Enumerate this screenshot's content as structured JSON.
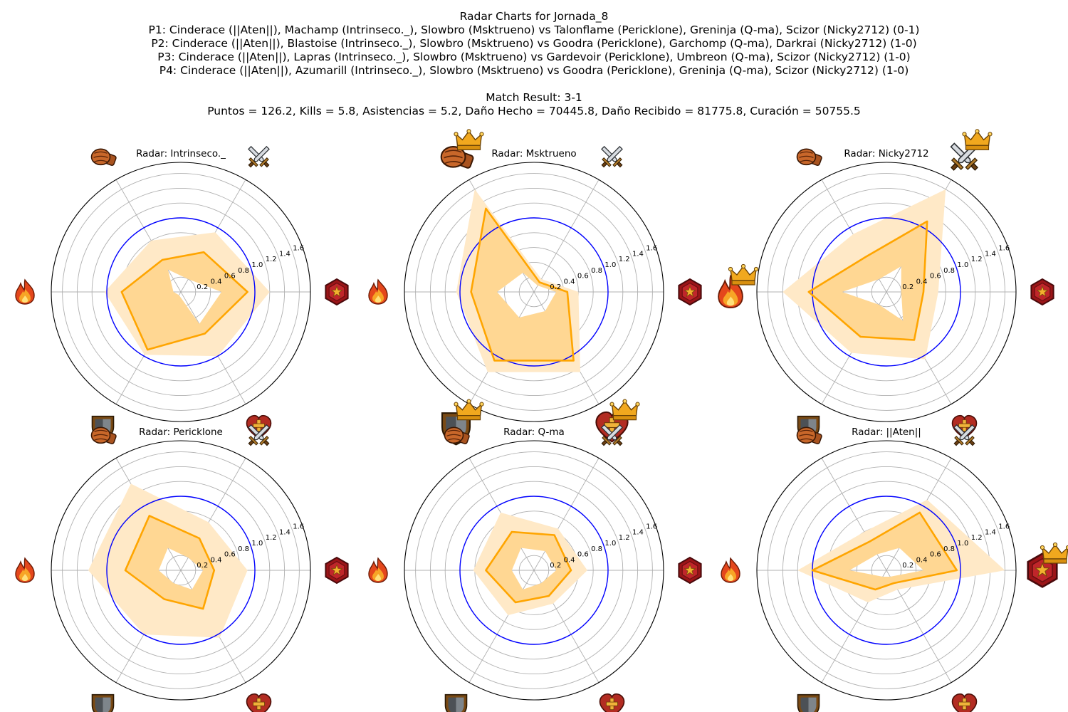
{
  "header": {
    "title": "Radar Charts for Jornada_8",
    "matches": [
      "P1: Cinderace (||Aten||), Machamp (Intrinseco._), Slowbro (Msktrueno) vs Talonflame (Pericklone), Greninja (Q-ma), Scizor (Nicky2712) (0-1)",
      "P2: Cinderace (||Aten||), Blastoise (Intrinseco._), Slowbro (Msktrueno) vs Goodra (Pericklone), Garchomp (Q-ma), Darkrai (Nicky2712) (1-0)",
      "P3: Cinderace (||Aten||), Lapras (Intrinseco._), Slowbro (Msktrueno) vs Gardevoir (Pericklone), Umbreon (Q-ma), Scizor (Nicky2712) (1-0)",
      "P4: Cinderace (||Aten||), Azumarill (Intrinseco._), Slowbro (Msktrueno) vs Goodra (Pericklone), Greninja (Q-ma), Scizor (Nicky2712) (1-0)"
    ],
    "match_result": "Match Result: 3-1",
    "summary": "Puntos = 126.2, Kills = 5.8, Asistencias = 5.2, Daño Hecho = 70445.8, Daño Recibido = 81775.8, Curación = 50755.5"
  },
  "colors": {
    "line": "#ffa500",
    "fill": "#ffd48a",
    "band": "#ffe9c7",
    "reference": "#0000ff",
    "grid": "#b0b0b0",
    "frame": "#000000"
  },
  "icons": [
    "star-icon",
    "sword-icon",
    "punch-icon",
    "fire-icon",
    "shield-icon",
    "heart-icon"
  ],
  "chart_data": [
    {
      "type": "radar",
      "title": "Radar: Intrinseco._",
      "rlim": [
        0,
        1.75
      ],
      "rticks": [
        "0.2",
        "0.4",
        "0.6",
        "0.8",
        "1.0",
        "1.2",
        "1.4",
        "1.6"
      ],
      "reference_circle": 1.0,
      "values": [
        0.9,
        0.62,
        0.5,
        0.8,
        0.9,
        0.65
      ],
      "band_min": [
        0.55,
        0.2,
        0.35,
        0.1,
        0.05,
        0.5
      ],
      "band_max": [
        1.2,
        0.93,
        0.8,
        1.03,
        0.98,
        1.0
      ],
      "crowns": []
    },
    {
      "type": "radar",
      "title": "Radar: Msktrueno",
      "rlim": [
        0,
        1.75
      ],
      "rticks": [
        "0.2",
        "0.4",
        "0.6",
        "0.8",
        "1.0",
        "1.2",
        "1.4",
        "1.6"
      ],
      "reference_circle": 1.0,
      "values": [
        0.45,
        0.15,
        1.3,
        0.85,
        1.07,
        1.07
      ],
      "band_min": [
        0.3,
        0.1,
        0.3,
        0.5,
        0.4,
        0.3
      ],
      "band_max": [
        0.6,
        0.2,
        1.6,
        1.05,
        1.25,
        1.25
      ],
      "crowns": [
        2,
        4,
        5
      ]
    },
    {
      "type": "radar",
      "title": "Radar: Nicky2712",
      "rlim": [
        0,
        1.75
      ],
      "rticks": [
        "0.2",
        "0.4",
        "0.6",
        "0.8",
        "1.0",
        "1.2",
        "1.4",
        "1.6"
      ],
      "reference_circle": 1.0,
      "values": [
        0.5,
        1.1,
        0.55,
        1.05,
        0.7,
        0.75
      ],
      "band_min": [
        0.2,
        0.4,
        0.2,
        0.6,
        0.2,
        0.45
      ],
      "band_max": [
        0.7,
        1.6,
        0.9,
        1.4,
        0.95,
        1.05
      ],
      "crowns": [
        1,
        3
      ]
    },
    {
      "type": "radar",
      "title": "Radar: Pericklone",
      "rlim": [
        0,
        1.75
      ],
      "rticks": [
        "0.2",
        "0.4",
        "0.6",
        "0.8",
        "1.0",
        "1.2",
        "1.4",
        "1.6"
      ],
      "reference_circle": 1.0,
      "values": [
        0.45,
        0.5,
        0.85,
        0.75,
        0.45,
        0.6
      ],
      "band_min": [
        0.3,
        0.2,
        0.35,
        0.3,
        0.2,
        0.3
      ],
      "band_max": [
        0.9,
        0.75,
        1.35,
        1.25,
        1.0,
        1.05
      ],
      "crowns": []
    },
    {
      "type": "radar",
      "title": "Radar: Q-ma",
      "rlim": [
        0,
        1.75
      ],
      "rticks": [
        "0.2",
        "0.4",
        "0.6",
        "0.8",
        "1.0",
        "1.2",
        "1.4",
        "1.6"
      ],
      "reference_circle": 1.0,
      "values": [
        0.5,
        0.55,
        0.6,
        0.65,
        0.5,
        0.4
      ],
      "band_min": [
        0.3,
        0.3,
        0.35,
        0.3,
        0.3,
        0.2
      ],
      "band_max": [
        0.72,
        0.65,
        0.9,
        0.82,
        0.7,
        0.52
      ],
      "crowns": []
    },
    {
      "type": "radar",
      "title": "Radar: ||Aten||",
      "rlim": [
        0,
        1.75
      ],
      "rticks": [
        "0.2",
        "0.4",
        "0.6",
        "0.8",
        "1.0",
        "1.2",
        "1.4",
        "1.6"
      ],
      "reference_circle": 1.0,
      "values": [
        0.95,
        0.9,
        0.45,
        1.0,
        0.3,
        0.2
      ],
      "band_min": [
        0.5,
        0.35,
        0.25,
        0.5,
        0.1,
        0.1
      ],
      "band_max": [
        1.6,
        1.1,
        0.6,
        1.2,
        0.5,
        0.3
      ],
      "crowns": [
        0
      ]
    }
  ]
}
